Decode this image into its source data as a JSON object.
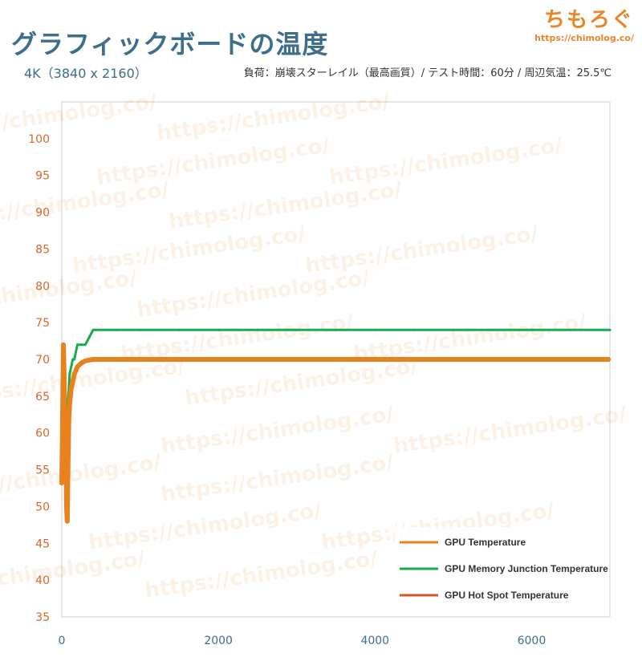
{
  "header": {
    "title": "グラフィックボードの温度",
    "subtitle": "4K（3840 x 2160）",
    "test_info": "負荷：崩壊スターレイル（最高画質）/ テスト時間：60分 / 周辺気温：25.5℃",
    "logo_text": "ちもろぐ",
    "logo_url": "https://chimolog.co/"
  },
  "watermark_text": "https://chimolog.co/",
  "colors": {
    "gpu_temp": "#e8821e",
    "mem_junction": "#1aaa55",
    "hot_spot": "#d8552a",
    "axis_text": "#d9662b",
    "title": "#3d6e8c"
  },
  "chart_data": {
    "type": "line",
    "title": "グラフィックボードの温度",
    "xlabel": "",
    "ylabel": "",
    "xlim": [
      0,
      7000
    ],
    "ylim": [
      35,
      105
    ],
    "x_ticks": [
      0,
      2000,
      4000,
      6000
    ],
    "y_ticks": [
      35,
      40,
      45,
      50,
      55,
      60,
      65,
      70,
      75,
      80,
      85,
      90,
      95,
      100
    ],
    "grid": false,
    "legend_position": "bottom-right",
    "series": [
      {
        "name": "GPU Temperature",
        "color": "#e8821e",
        "x": [
          0,
          10,
          20,
          30,
          40,
          50,
          60,
          70,
          80,
          90,
          100,
          120,
          140,
          160,
          180,
          200,
          250,
          300,
          400,
          500,
          700,
          1000,
          1500,
          2000,
          2500,
          3000,
          3500,
          4000,
          4500,
          5000,
          5500,
          6000,
          6500,
          7000
        ],
        "y": [
          53,
          62,
          72,
          68,
          55,
          62,
          50,
          48,
          56,
          62,
          64,
          66,
          67,
          68,
          68.5,
          69,
          69.5,
          69.8,
          70,
          70,
          70,
          70,
          70,
          70,
          70,
          70,
          70,
          70,
          70,
          70,
          70,
          70,
          70,
          70
        ]
      },
      {
        "name": "GPU Memory Junction Temperature",
        "color": "#1aaa55",
        "x": [
          0,
          10,
          20,
          40,
          60,
          80,
          100,
          140,
          160,
          200,
          250,
          300,
          350,
          400,
          700,
          1000,
          1500,
          2000,
          2500,
          3000,
          3500,
          4000,
          4500,
          5000,
          5500,
          6000,
          6500,
          7000
        ],
        "y": [
          60,
          66,
          62,
          68,
          62,
          64,
          68,
          70,
          70,
          72,
          72,
          72,
          73,
          74,
          74,
          74,
          74,
          74,
          74,
          74,
          74,
          74,
          74,
          74,
          74,
          74,
          74,
          74
        ]
      },
      {
        "name": "GPU Hot Spot Temperature",
        "color": "#d8552a",
        "x": [],
        "y": []
      }
    ]
  }
}
